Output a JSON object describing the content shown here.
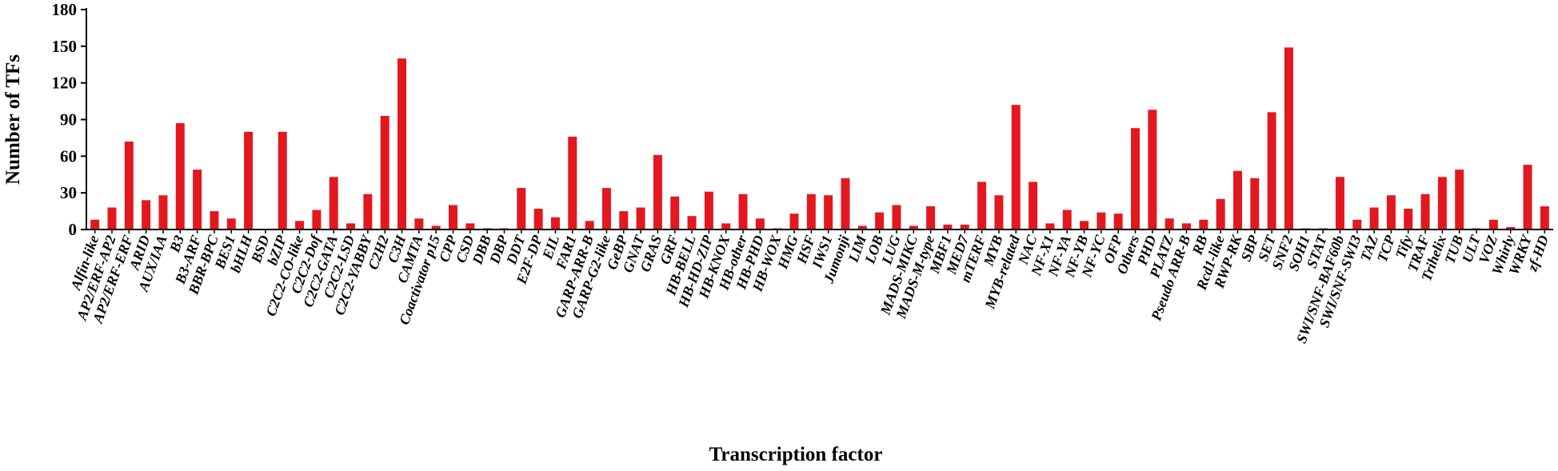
{
  "colors": {
    "bar": "#E3181F",
    "axis": "#000000",
    "background": "#FFFFFF"
  },
  "chart_data": {
    "type": "bar",
    "title": "",
    "xlabel": "Transcription factor",
    "ylabel": "Number of TFs",
    "ylim": [
      0,
      180
    ],
    "yticks": [
      0,
      30,
      60,
      90,
      120,
      150,
      180
    ],
    "grid": false,
    "legend": "none",
    "categories": [
      "Alfin-like",
      "AP2/ERF-AP2",
      "AP2/ERF-ERF",
      "ARID",
      "AUX/IAA",
      "B3",
      "B3-ARF",
      "BBR-BPC",
      "BES1",
      "bHLH",
      "BSD",
      "bZIP",
      "C2C2-CO-like",
      "C2C2-Dof",
      "C2C2-GATA",
      "C2C2-LSD",
      "C2C2-YABBY",
      "C2H2",
      "C3H",
      "CAMTA",
      "Coactivator p15",
      "CPP",
      "CSD",
      "DBB",
      "DBP",
      "DDT",
      "E2F-DP",
      "EIL",
      "FAR1",
      "GARP-ARR-B",
      "GARP-G2-like",
      "GeBP",
      "GNAT",
      "GRAS",
      "GRF",
      "HB-BELL",
      "HB-HD-ZIP",
      "HB-KNOX",
      "HB-other",
      "HB-PHD",
      "HB-WOX",
      "HMG",
      "HSF",
      "IWS1",
      "Jumonji",
      "LIM",
      "LOB",
      "LUG",
      "MADS-MIKC",
      "MADS-M-type",
      "MBF1",
      "MED7",
      "mTERF",
      "MYB",
      "MYB-related",
      "NAC",
      "NF-X1",
      "NF-YA",
      "NF-YB",
      "NF-YC",
      "OFP",
      "Others",
      "PHD",
      "PLATZ",
      "Pseudo ARR-B",
      "RB",
      "Rcd1-like",
      "RWP-RK",
      "SBP",
      "SET",
      "SNF2",
      "SOH1",
      "STAT",
      "SWI/SNF-BAF60b",
      "SWI/SNF-SWI3",
      "TAZ",
      "TCP",
      "Tify",
      "TRAF",
      "Trihelix",
      "TUB",
      "ULT",
      "VOZ",
      "Whirly",
      "WRKY",
      "zf-HD"
    ],
    "values": [
      8,
      18,
      72,
      24,
      28,
      87,
      49,
      15,
      9,
      80,
      0,
      80,
      7,
      16,
      43,
      5,
      29,
      93,
      140,
      9,
      3,
      20,
      5,
      1,
      1,
      34,
      17,
      10,
      76,
      7,
      34,
      15,
      18,
      61,
      27,
      11,
      31,
      5,
      29,
      9,
      1,
      13,
      29,
      28,
      42,
      3,
      14,
      20,
      3,
      19,
      4,
      4,
      39,
      28,
      102,
      39,
      5,
      16,
      7,
      14,
      13,
      83,
      98,
      9,
      5,
      8,
      25,
      48,
      42,
      96,
      149,
      1,
      1,
      43,
      8,
      18,
      28,
      17,
      29,
      43,
      49,
      1,
      8,
      2,
      53,
      19
    ]
  }
}
